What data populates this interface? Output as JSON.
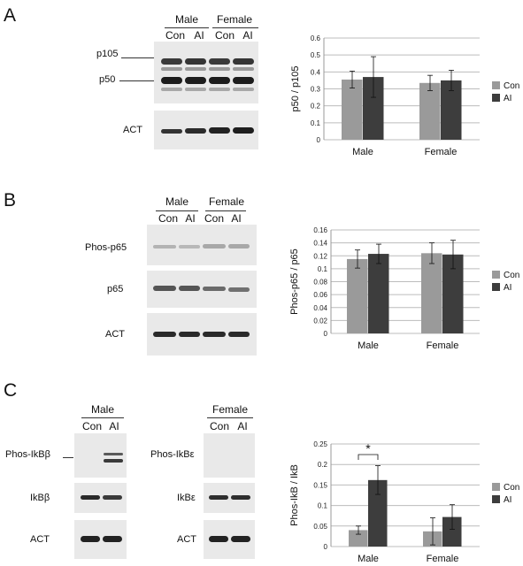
{
  "panels": {
    "A": {
      "letter": "A",
      "groups": [
        "Male",
        "Female"
      ],
      "lanes": [
        "Con",
        "AI",
        "Con",
        "AI"
      ],
      "markers": [
        "p105",
        "p50",
        "ACT"
      ]
    },
    "B": {
      "letter": "B",
      "groups": [
        "Male",
        "Female"
      ],
      "lanes": [
        "Con",
        "AI",
        "Con",
        "AI"
      ],
      "markers": [
        "Phos-p65",
        "p65",
        "ACT"
      ]
    },
    "C": {
      "letter": "C",
      "male_group": "Male",
      "female_group": "Female",
      "lanes": [
        "Con",
        "AI"
      ],
      "male_markers": [
        "Phos-IkBβ",
        "IkBβ",
        "ACT"
      ],
      "female_markers": [
        "Phos-IkBε",
        "IkBε",
        "ACT"
      ]
    }
  },
  "chart_data": [
    {
      "type": "bar",
      "panel": "A",
      "title": "",
      "xlabel": "",
      "ylabel": "p50 / p105",
      "categories": [
        "Male",
        "Female"
      ],
      "series": [
        {
          "name": "Con",
          "values": [
            0.355,
            0.335
          ],
          "errors": [
            0.05,
            0.045
          ],
          "color": "#9a9a9a"
        },
        {
          "name": "AI",
          "values": [
            0.37,
            0.35
          ],
          "errors": [
            0.12,
            0.06
          ],
          "color": "#3d3d3d"
        }
      ],
      "ylim": [
        0,
        0.6
      ],
      "yticks": [
        0,
        0.1,
        0.2,
        0.3,
        0.4,
        0.5,
        0.6
      ],
      "ytick_labels": [
        "0",
        "0.1",
        "0.2",
        "0.3",
        "0.4",
        "0.5",
        "0.6"
      ],
      "grid": true,
      "legend": "right"
    },
    {
      "type": "bar",
      "panel": "B",
      "title": "",
      "xlabel": "",
      "ylabel": "Phos-p65 / p65",
      "categories": [
        "Male",
        "Female"
      ],
      "series": [
        {
          "name": "Con",
          "values": [
            0.115,
            0.124
          ],
          "errors": [
            0.014,
            0.016
          ],
          "color": "#9a9a9a"
        },
        {
          "name": "AI",
          "values": [
            0.123,
            0.122
          ],
          "errors": [
            0.015,
            0.022
          ],
          "color": "#3d3d3d"
        }
      ],
      "ylim": [
        0,
        0.16
      ],
      "yticks": [
        0,
        0.02,
        0.04,
        0.06,
        0.08,
        0.1,
        0.12,
        0.14,
        0.16
      ],
      "ytick_labels": [
        "0",
        "0.02",
        "0.04",
        "0.06",
        "0.08",
        "0.1",
        "0.12",
        "0.14",
        "0.16"
      ],
      "grid": true,
      "legend": "right"
    },
    {
      "type": "bar",
      "panel": "C",
      "title": "",
      "xlabel": "",
      "ylabel": "Phos-IkB / IkB",
      "categories": [
        "Male",
        "Female"
      ],
      "series": [
        {
          "name": "Con",
          "values": [
            0.04,
            0.037
          ],
          "errors": [
            0.01,
            0.033
          ],
          "color": "#9a9a9a"
        },
        {
          "name": "AI",
          "values": [
            0.162,
            0.072
          ],
          "errors": [
            0.035,
            0.03
          ],
          "color": "#3d3d3d"
        }
      ],
      "ylim": [
        0,
        0.25
      ],
      "yticks": [
        0,
        0.05,
        0.1,
        0.15,
        0.2,
        0.25
      ],
      "ytick_labels": [
        "0",
        "0.05",
        "0.1",
        "0.15",
        "0.2",
        "0.25"
      ],
      "grid": true,
      "legend": "right",
      "annotation": "*"
    }
  ]
}
